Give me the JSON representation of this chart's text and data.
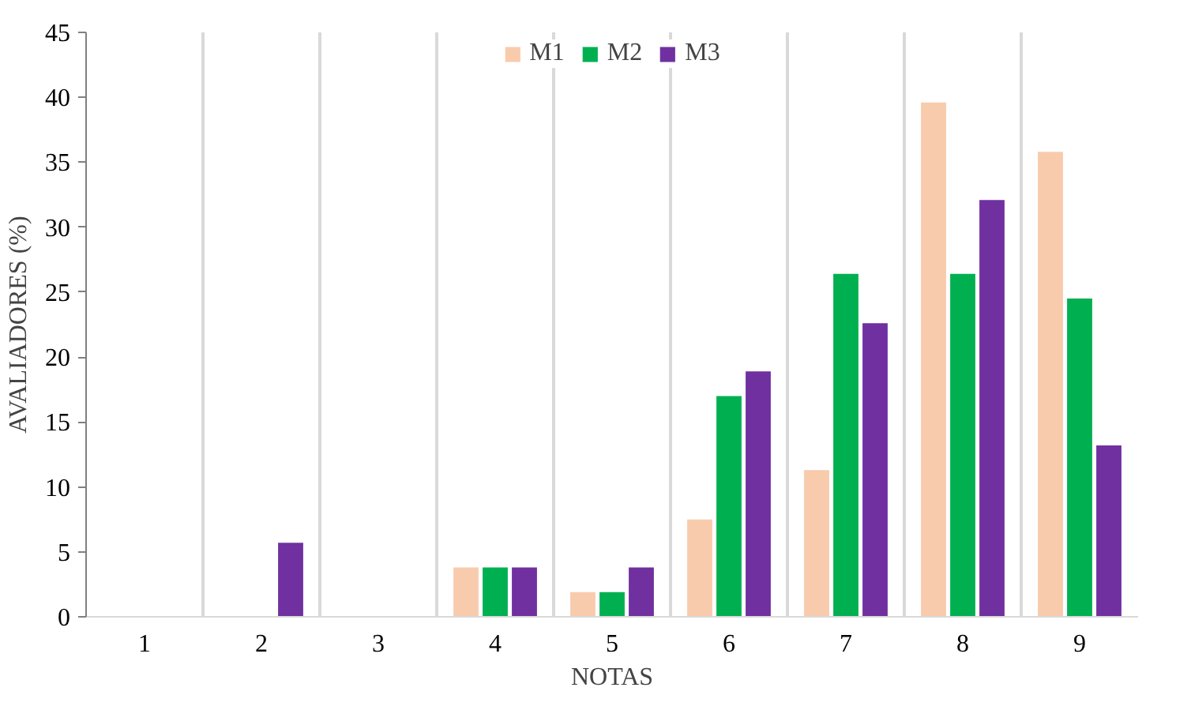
{
  "chart_data": {
    "type": "bar",
    "xlabel": "NOTAS",
    "ylabel": "AVALIADORES (%)",
    "categories": [
      "1",
      "2",
      "3",
      "4",
      "5",
      "6",
      "7",
      "8",
      "9"
    ],
    "series": [
      {
        "name": "M1",
        "color": "#f8cbad",
        "values": [
          0,
          0,
          0,
          3.8,
          1.9,
          7.5,
          11.3,
          39.6,
          35.8
        ]
      },
      {
        "name": "M2",
        "color": "#00b050",
        "values": [
          0,
          0,
          0,
          3.8,
          1.9,
          17.0,
          26.4,
          26.4,
          24.5
        ]
      },
      {
        "name": "M3",
        "color": "#7030a0",
        "values": [
          0,
          5.7,
          0,
          3.8,
          3.8,
          18.9,
          22.6,
          32.1,
          13.2
        ]
      }
    ],
    "ylim": [
      0,
      45
    ],
    "yticks": [
      0,
      5,
      10,
      15,
      20,
      25,
      30,
      35,
      40,
      45
    ],
    "grid": "x",
    "legend": "top"
  }
}
